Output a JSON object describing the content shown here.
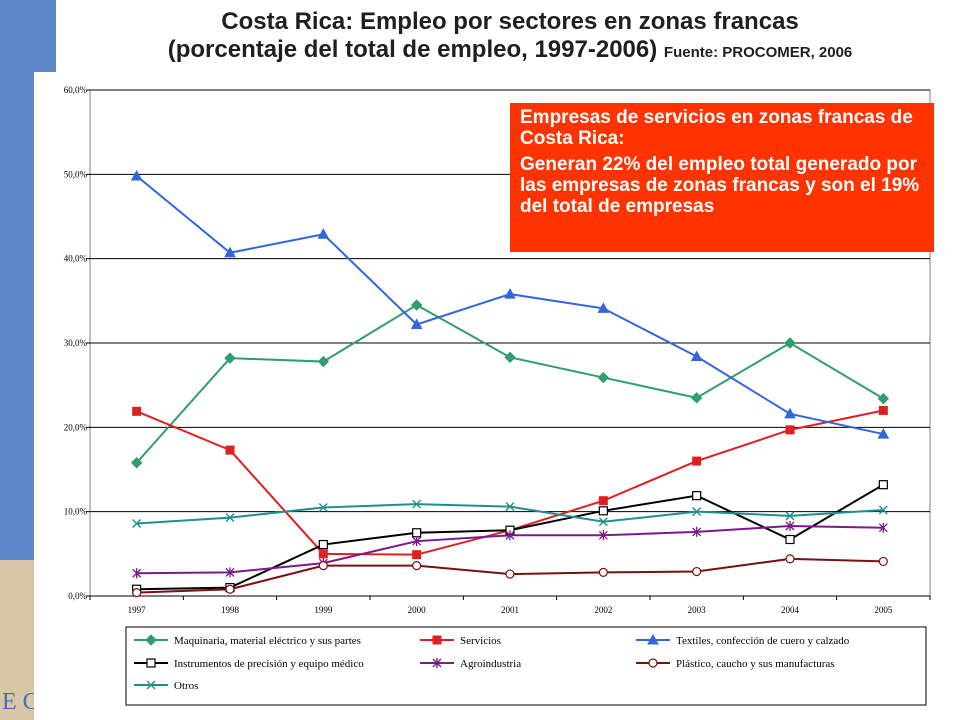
{
  "title": {
    "line1": "Costa Rica: Empleo por sectores en zonas francas",
    "line2": "(porcentaje del total de empleo, 1997-2006)",
    "source": "Fuente: PROCOMER, 2006"
  },
  "callout": {
    "heading": "Empresas de servicios en zonas francas de Costa Rica:",
    "body": "Generan 22% del empleo total generado por las empresas de zonas francas y son el 19% del total de empresas"
  },
  "logo_text": "EC",
  "chart_data": {
    "type": "line",
    "x": [
      "1997",
      "1998",
      "1999",
      "2000",
      "2001",
      "2002",
      "2003",
      "2004",
      "2005"
    ],
    "ylim": [
      0,
      60
    ],
    "yticks": [
      0,
      10,
      20,
      30,
      40,
      50,
      60
    ],
    "ytick_labels": [
      "0,0%",
      "10,0%",
      "20,0%",
      "30,0%",
      "40,0%",
      "50,0%",
      "60,0%"
    ],
    "grid": true,
    "legend_position": "bottom",
    "series": [
      {
        "name": "Maquinaria, material eléctrico y sus partes",
        "color": "#2e9e6b",
        "marker": "diamond",
        "values": [
          15.8,
          28.2,
          27.8,
          34.5,
          28.3,
          25.9,
          23.5,
          30.0,
          23.4
        ]
      },
      {
        "name": "Servicios",
        "color": "#e02020",
        "marker": "square",
        "values": [
          21.9,
          17.3,
          5.0,
          4.9,
          7.8,
          11.3,
          16.0,
          19.7,
          22.0
        ]
      },
      {
        "name": "Textiles, confección de cuero y calzado",
        "color": "#3366dd",
        "marker": "triangle",
        "values": [
          49.8,
          40.7,
          42.9,
          32.2,
          35.8,
          34.1,
          28.4,
          21.6,
          19.2
        ]
      },
      {
        "name": "Instrumentos de precisión y equipo médico",
        "color": "#000000",
        "marker": "open-square",
        "values": [
          0.8,
          1.0,
          6.1,
          7.5,
          7.8,
          10.1,
          11.9,
          6.7,
          13.2
        ]
      },
      {
        "name": "Agroindustria",
        "color": "#7a1a8c",
        "marker": "star",
        "values": [
          2.7,
          2.8,
          3.9,
          6.5,
          7.2,
          7.2,
          7.6,
          8.3,
          8.1
        ]
      },
      {
        "name": "Plástico, caucho y sus manufacturas",
        "color": "#7a1010",
        "marker": "circle",
        "values": [
          0.4,
          0.8,
          3.6,
          3.6,
          2.6,
          2.8,
          2.9,
          4.4,
          4.1
        ]
      },
      {
        "name": "Otros",
        "color": "#1e8f8f",
        "marker": "x",
        "values": [
          8.6,
          9.3,
          10.5,
          10.9,
          10.6,
          8.8,
          10.0,
          9.5,
          10.2
        ]
      }
    ]
  }
}
